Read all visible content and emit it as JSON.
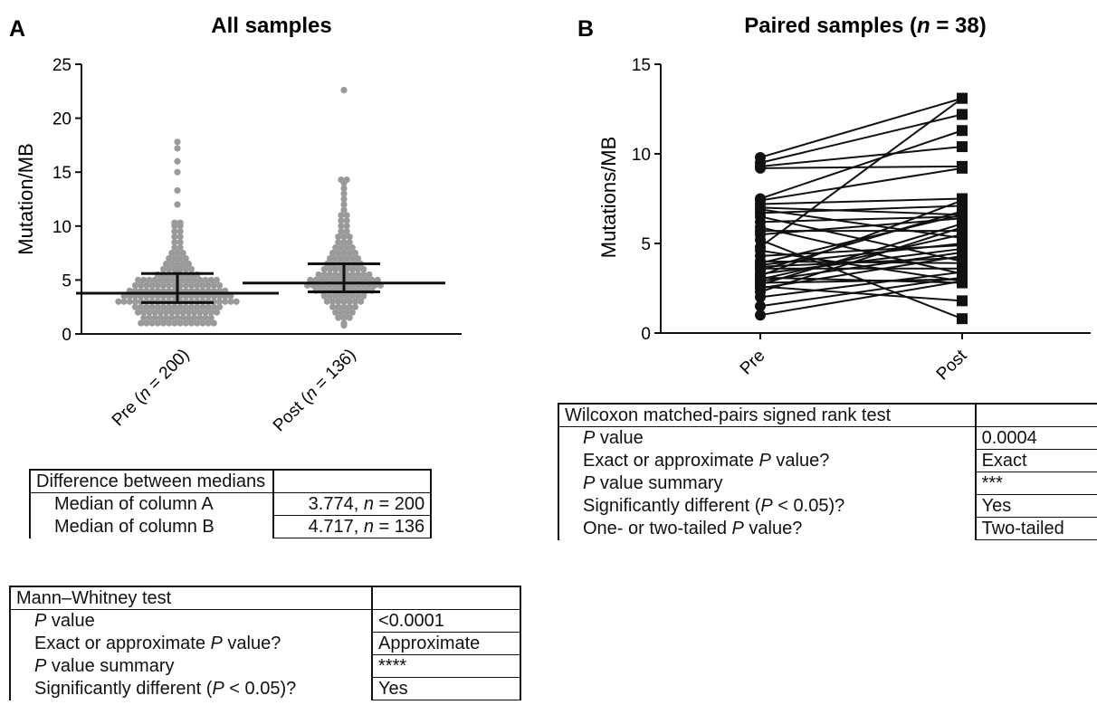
{
  "chart_data": [
    {
      "panel": "A",
      "type": "scatter",
      "title": "All samples",
      "ylabel": "Mutation/MB",
      "ylim": [
        0,
        25
      ],
      "yticks": [
        0,
        5,
        10,
        15,
        20,
        25
      ],
      "categories": [
        "Pre (n = 200)",
        "Post (n = 136)"
      ],
      "median": [
        3.774,
        4.717
      ],
      "iqr": [
        [
          2.9,
          5.6
        ],
        [
          3.9,
          6.5
        ]
      ],
      "series": [
        {
          "category": "Pre (n = 200)",
          "values": [
            1.0,
            1.0,
            1.0,
            1.0,
            1.0,
            1.0,
            1.0,
            1.0,
            1.0,
            1.0,
            1.0,
            1.0,
            1.0,
            1.0,
            1.5,
            1.5,
            1.5,
            1.5,
            1.5,
            1.5,
            1.5,
            1.5,
            1.5,
            1.5,
            1.5,
            1.5,
            1.5,
            2.0,
            2.0,
            2.0,
            2.0,
            2.0,
            2.0,
            2.0,
            2.0,
            2.0,
            2.0,
            2.0,
            2.0,
            2.0,
            2.0,
            2.0,
            2.5,
            2.5,
            2.5,
            2.5,
            2.5,
            2.5,
            2.5,
            2.5,
            2.5,
            2.5,
            2.5,
            2.5,
            2.5,
            2.5,
            2.5,
            2.5,
            3.0,
            3.0,
            3.0,
            3.0,
            3.0,
            3.0,
            3.0,
            3.0,
            3.0,
            3.0,
            3.0,
            3.0,
            3.0,
            3.0,
            3.0,
            3.0,
            3.0,
            3.0,
            3.0,
            3.0,
            3.0,
            3.0,
            3.5,
            3.5,
            3.5,
            3.5,
            3.5,
            3.5,
            3.5,
            3.5,
            3.5,
            3.5,
            3.5,
            3.5,
            3.5,
            3.5,
            3.5,
            3.5,
            3.5,
            3.5,
            3.5,
            3.5,
            4.0,
            4.0,
            4.0,
            4.0,
            4.0,
            4.0,
            4.0,
            4.0,
            4.0,
            4.0,
            4.0,
            4.0,
            4.0,
            4.0,
            4.0,
            4.0,
            4.0,
            4.0,
            4.5,
            4.5,
            4.5,
            4.5,
            4.5,
            4.5,
            4.5,
            4.5,
            4.5,
            4.5,
            4.5,
            4.5,
            4.5,
            4.5,
            4.5,
            4.5,
            5.0,
            5.0,
            5.0,
            5.0,
            5.0,
            5.0,
            5.0,
            5.0,
            5.0,
            5.0,
            5.0,
            5.0,
            5.0,
            5.0,
            5.0,
            5.5,
            5.5,
            5.5,
            5.5,
            5.5,
            5.5,
            5.5,
            5.5,
            6.0,
            6.0,
            6.0,
            6.0,
            6.0,
            6.0,
            6.5,
            6.5,
            6.5,
            6.5,
            6.5,
            7.0,
            7.0,
            7.0,
            7.0,
            7.5,
            7.5,
            7.5,
            8.0,
            8.0,
            8.5,
            8.5,
            9.0,
            9.0,
            9.5,
            9.5,
            10.0,
            10.0,
            10.3,
            10.3,
            12.0,
            13.3,
            15.0,
            16.0,
            17.2,
            17.8,
            5.8,
            6.3,
            3.2
          ]
        },
        {
          "category": "Post (n = 136)",
          "values": [
            0.8,
            1.0,
            1.5,
            1.5,
            1.5,
            2.0,
            2.0,
            2.0,
            2.0,
            2.5,
            2.5,
            2.5,
            2.5,
            2.5,
            3.0,
            3.0,
            3.0,
            3.0,
            3.0,
            3.0,
            3.0,
            3.5,
            3.5,
            3.5,
            3.5,
            3.5,
            3.5,
            3.5,
            3.5,
            4.0,
            4.0,
            4.0,
            4.0,
            4.0,
            4.0,
            4.0,
            4.0,
            4.0,
            4.0,
            4.0,
            4.5,
            4.5,
            4.5,
            4.5,
            4.5,
            4.5,
            4.5,
            4.5,
            4.5,
            4.5,
            4.5,
            4.5,
            4.5,
            4.5,
            5.0,
            5.0,
            5.0,
            5.0,
            5.0,
            5.0,
            5.0,
            5.0,
            5.0,
            5.0,
            5.0,
            5.0,
            5.0,
            5.5,
            5.5,
            5.5,
            5.5,
            5.5,
            5.5,
            5.5,
            5.5,
            5.5,
            5.5,
            6.0,
            6.0,
            6.0,
            6.0,
            6.0,
            6.0,
            6.0,
            6.0,
            6.5,
            6.5,
            6.5,
            6.5,
            6.5,
            6.5,
            6.5,
            7.0,
            7.0,
            7.0,
            7.0,
            7.0,
            7.0,
            7.5,
            7.5,
            7.5,
            7.5,
            7.5,
            8.0,
            8.0,
            8.0,
            8.0,
            8.5,
            8.5,
            8.5,
            9.0,
            9.0,
            9.0,
            9.5,
            9.5,
            10.0,
            10.0,
            10.5,
            10.5,
            11.0,
            11.0,
            11.5,
            12.0,
            12.5,
            13.0,
            13.5,
            14.0,
            14.3,
            14.3,
            3.8,
            4.2,
            5.2,
            5.8,
            22.6
          ]
        }
      ]
    },
    {
      "panel": "B",
      "type": "line",
      "title": "Paired samples (n = 38)",
      "ylabel": "Mutations/MB",
      "ylim": [
        0,
        15
      ],
      "yticks": [
        0,
        5,
        10,
        15
      ],
      "categories": [
        "Pre",
        "Post"
      ],
      "pairs": [
        [
          9.8,
          13.1
        ],
        [
          9.5,
          12.2
        ],
        [
          9.3,
          10.4
        ],
        [
          9.2,
          9.3
        ],
        [
          7.5,
          11.3
        ],
        [
          7.4,
          9.2
        ],
        [
          7.2,
          7.5
        ],
        [
          7.0,
          6.6
        ],
        [
          6.9,
          5.3
        ],
        [
          6.7,
          7.1
        ],
        [
          6.5,
          4.0
        ],
        [
          6.2,
          6.5
        ],
        [
          5.9,
          3.3
        ],
        [
          5.7,
          5.7
        ],
        [
          5.5,
          6.4
        ],
        [
          5.2,
          0.8
        ],
        [
          4.8,
          13.1
        ],
        [
          4.6,
          2.9
        ],
        [
          4.3,
          4.9
        ],
        [
          4.0,
          3.9
        ],
        [
          3.9,
          6.6
        ],
        [
          3.8,
          5.0
        ],
        [
          3.7,
          4.2
        ],
        [
          3.6,
          3.6
        ],
        [
          3.5,
          6.8
        ],
        [
          3.3,
          4.7
        ],
        [
          3.2,
          7.4
        ],
        [
          3.1,
          2.8
        ],
        [
          3.0,
          5.5
        ],
        [
          2.9,
          4.5
        ],
        [
          2.8,
          3.0
        ],
        [
          2.7,
          6.1
        ],
        [
          2.6,
          1.8
        ],
        [
          2.5,
          4.3
        ],
        [
          2.3,
          5.9
        ],
        [
          2.0,
          3.4
        ],
        [
          1.5,
          3.1
        ],
        [
          1.0,
          2.9
        ]
      ]
    }
  ],
  "panels": {
    "a_label": "A",
    "b_label": "B"
  },
  "tables": {
    "medians": {
      "header": "Difference between medians",
      "rows": [
        {
          "label": "Median of column A",
          "value_num": "3.774, ",
          "value_n": "n",
          "value_rest": " = 200"
        },
        {
          "label": "Median of column B",
          "value_num": "4.717, ",
          "value_n": "n",
          "value_rest": " = 136"
        }
      ]
    },
    "mann_whitney": {
      "header": "Mann–Whitney test",
      "rows": [
        {
          "label_pre": "",
          "label_it": "P",
          "label_post": " value",
          "value": "<0.0001"
        },
        {
          "label_pre": "Exact or approximate ",
          "label_it": "P",
          "label_post": " value?",
          "value": "Approximate"
        },
        {
          "label_pre": "",
          "label_it": "P",
          "label_post": " value summary",
          "value": "****"
        },
        {
          "label_pre": "Significantly different (",
          "label_it": "P",
          "label_post": " < 0.05)?",
          "value": "Yes"
        }
      ]
    },
    "wilcoxon": {
      "header": "Wilcoxon matched-pairs signed rank test",
      "rows": [
        {
          "label_pre": "",
          "label_it": "P",
          "label_post": " value",
          "value": "0.0004"
        },
        {
          "label_pre": "Exact or approximate ",
          "label_it": "P",
          "label_post": " value?",
          "value": "Exact"
        },
        {
          "label_pre": "",
          "label_it": "P",
          "label_post": " value summary",
          "value": "***"
        },
        {
          "label_pre": "Significantly different (",
          "label_it": "P",
          "label_post": " < 0.05)?",
          "value": "Yes"
        },
        {
          "label_pre": "One- or two-tailed ",
          "label_it": "P",
          "label_post": " value?",
          "value": "Two-tailed"
        }
      ]
    }
  },
  "colors": {
    "dots": "#9a9a9a",
    "ink": "#111111"
  }
}
